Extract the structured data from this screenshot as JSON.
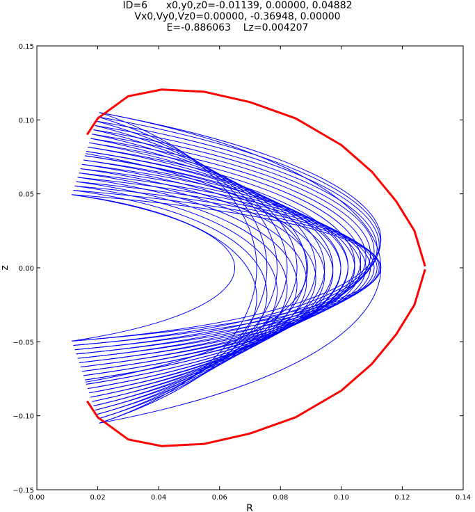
{
  "chart_data": {
    "type": "line",
    "title_lines": [
      "ID=6      x0,y0,z0=-0.01139, 0.00000, 0.04882",
      "Vx0,Vy0,Vz0=0.00000, -0.36948, 0.00000",
      "E=-0.886063    Lz=0.004207"
    ],
    "xlabel": "R",
    "ylabel": "z",
    "xlim": [
      0.0,
      0.14
    ],
    "ylim": [
      -0.15,
      0.15
    ],
    "xticks": [
      "0.00",
      "0.02",
      "0.04",
      "0.06",
      "0.08",
      "0.10",
      "0.12",
      "0.14"
    ],
    "yticks": [
      "−0.15",
      "−0.10",
      "−0.05",
      "0.00",
      "0.05",
      "0.10",
      "0.15"
    ],
    "grid": false,
    "series": [
      {
        "role": "orbit",
        "color": "#0000ff",
        "envelope": {
          "inner_turn_R": 0.065,
          "outer_turn_R": 0.113,
          "corners": [
            {
              "R": 0.0115,
              "z": 0.0495
            },
            {
              "R": 0.0205,
              "z": 0.105
            },
            {
              "R": 0.0115,
              "z": -0.0495
            },
            {
              "R": 0.0205,
              "z": -0.105
            }
          ]
        },
        "num_strands": 20
      },
      {
        "role": "zero-velocity-curve",
        "color": "#ff0000",
        "points": [
          {
            "R": 0.0165,
            "z": 0.09
          },
          {
            "R": 0.02,
            "z": 0.101
          },
          {
            "R": 0.03,
            "z": 0.116
          },
          {
            "R": 0.041,
            "z": 0.1205
          },
          {
            "R": 0.055,
            "z": 0.119
          },
          {
            "R": 0.07,
            "z": 0.112
          },
          {
            "R": 0.085,
            "z": 0.101
          },
          {
            "R": 0.1,
            "z": 0.083
          },
          {
            "R": 0.11,
            "z": 0.065
          },
          {
            "R": 0.118,
            "z": 0.045
          },
          {
            "R": 0.124,
            "z": 0.025
          },
          {
            "R": 0.1275,
            "z": 0.0
          },
          {
            "R": 0.124,
            "z": -0.025
          },
          {
            "R": 0.118,
            "z": -0.045
          },
          {
            "R": 0.11,
            "z": -0.065
          },
          {
            "R": 0.1,
            "z": -0.083
          },
          {
            "R": 0.085,
            "z": -0.101
          },
          {
            "R": 0.07,
            "z": -0.112
          },
          {
            "R": 0.055,
            "z": -0.119
          },
          {
            "R": 0.041,
            "z": -0.1205
          },
          {
            "R": 0.03,
            "z": -0.116
          },
          {
            "R": 0.02,
            "z": -0.101
          },
          {
            "R": 0.0165,
            "z": -0.09
          }
        ]
      }
    ]
  }
}
